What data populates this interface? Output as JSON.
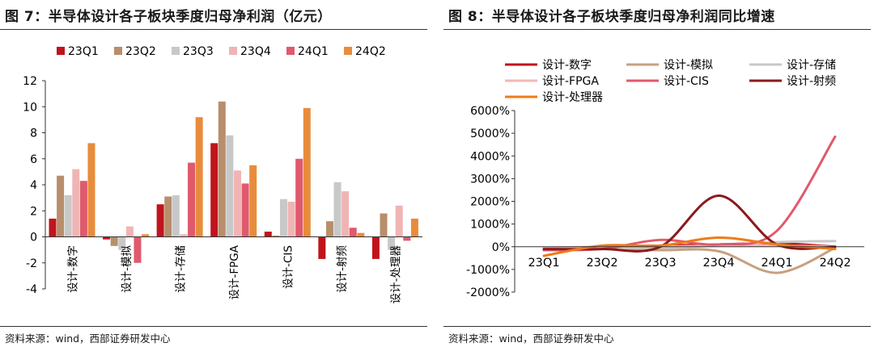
{
  "charts": [
    {
      "title": "图 7：半导体设计各子板块季度归母净利润（亿元）",
      "source": "资料来源：wind，西部证券研发中心",
      "chart_data": {
        "type": "bar",
        "categories": [
          "设计-数字",
          "设计-模拟",
          "设计-存储",
          "设计-FPGA",
          "设计-CIS",
          "设计-射频",
          "设计-处理器"
        ],
        "series": [
          {
            "name": "23Q1",
            "color": "#c0141c",
            "values": [
              1.4,
              -0.2,
              2.5,
              7.2,
              0.4,
              -1.7,
              -1.7
            ]
          },
          {
            "name": "23Q2",
            "color": "#b88e6b",
            "values": [
              4.7,
              -0.7,
              3.1,
              10.4,
              0.1,
              1.2,
              1.8
            ]
          },
          {
            "name": "23Q3",
            "color": "#c8c8c8",
            "values": [
              3.2,
              -1.0,
              3.2,
              7.8,
              2.9,
              4.2,
              -1.0
            ]
          },
          {
            "name": "23Q4",
            "color": "#f0b4b4",
            "values": [
              5.2,
              0.8,
              0.2,
              5.1,
              2.7,
              3.5,
              2.4
            ]
          },
          {
            "name": "24Q1",
            "color": "#e05a6c",
            "values": [
              4.3,
              -2.0,
              5.7,
              4.1,
              6.0,
              0.7,
              -0.3
            ]
          },
          {
            "name": "24Q2",
            "color": "#e88c3c",
            "values": [
              7.2,
              0.2,
              9.2,
              5.5,
              9.9,
              0.3,
              1.4
            ]
          }
        ],
        "yticks": [
          "12",
          "10",
          "8",
          "6",
          "4",
          "2",
          "0",
          "-2",
          "-4"
        ],
        "ylim": [
          -4,
          12
        ],
        "legend_position": "top-left",
        "xlabel": "",
        "ylabel": ""
      }
    },
    {
      "title": "图 8：半导体设计各子板块季度归母净利润同比增速",
      "source": "资料来源：wind，西部证券研发中心",
      "chart_data": {
        "type": "line",
        "smooth": true,
        "x": [
          "23Q1",
          "23Q2",
          "23Q3",
          "23Q4",
          "24Q1",
          "24Q2"
        ],
        "series": [
          {
            "name": "设计-数字",
            "color": "#c0141c",
            "values": [
              -100,
              0,
              50,
              100,
              150,
              0
            ]
          },
          {
            "name": "设计-模拟",
            "color": "#c8a07e",
            "values": [
              -150,
              -100,
              -150,
              -200,
              -1150,
              -50
            ]
          },
          {
            "name": "设计-存储",
            "color": "#c8c8c8",
            "values": [
              -100,
              -50,
              -50,
              50,
              200,
              250
            ]
          },
          {
            "name": "设计-FPGA",
            "color": "#f4b6b6",
            "values": [
              -50,
              0,
              0,
              50,
              50,
              0
            ]
          },
          {
            "name": "设计-CIS",
            "color": "#e05a6c",
            "values": [
              -150,
              -100,
              300,
              100,
              700,
              4850
            ]
          },
          {
            "name": "设计-射频",
            "color": "#8a1a1e",
            "values": [
              -100,
              -100,
              0,
              2250,
              100,
              0
            ]
          },
          {
            "name": "设计-处理器",
            "color": "#ee7b18",
            "values": [
              -400,
              50,
              50,
              400,
              100,
              -100
            ]
          }
        ],
        "yticks": [
          "6000%",
          "5000%",
          "4000%",
          "3000%",
          "2000%",
          "1000%",
          "0%",
          "-1000%",
          "-2000%"
        ],
        "ylim": [
          -2000,
          6000
        ],
        "legend_position": "top",
        "xlabel": "",
        "ylabel": ""
      }
    }
  ]
}
